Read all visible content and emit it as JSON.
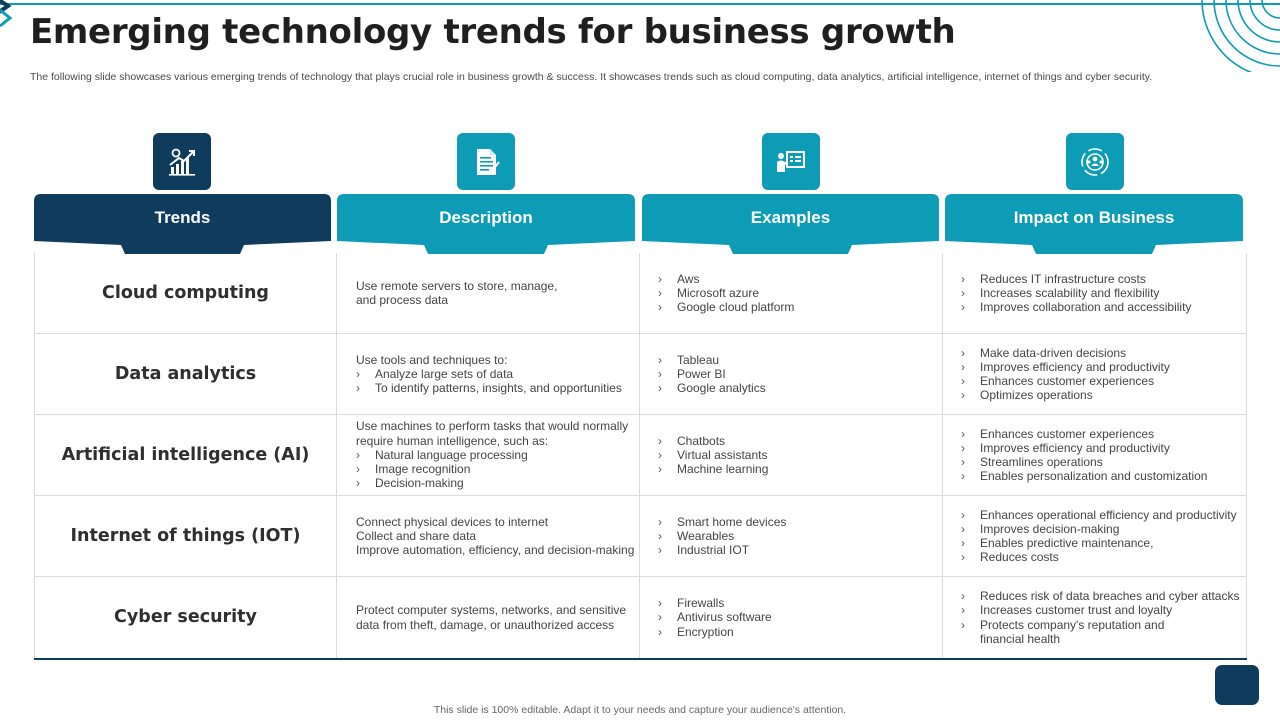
{
  "slide": {
    "title": "Emerging technology trends for business growth",
    "subtitle": "The following slide showcases various emerging trends of technology that plays crucial role in business growth & success. It showcases trends such as cloud computing, data analytics, artificial intelligence, internet of things and cyber security.",
    "footer": "This slide is 100% editable.  Adapt it to your needs and capture your audience's attention."
  },
  "colors": {
    "navy": "#0f3b5c",
    "teal": "#0e9bb5"
  },
  "columns": [
    {
      "label": "Trends",
      "icon": "growth-chart-icon",
      "color": "#0f3b5c"
    },
    {
      "label": "Description",
      "icon": "document-icon",
      "color": "#0e9bb5"
    },
    {
      "label": "Examples",
      "icon": "presentation-board-icon",
      "color": "#0e9bb5"
    },
    {
      "label": "Impact on Business",
      "icon": "target-people-icon",
      "color": "#0e9bb5"
    }
  ],
  "rows": [
    {
      "trend": "Cloud computing",
      "description": [
        {
          "text": "Use remote servers to store, manage,",
          "bullet": false
        },
        {
          "text": "and process data",
          "bullet": false
        }
      ],
      "examples": [
        "Aws",
        "Microsoft azure",
        "Google cloud platform"
      ],
      "impact": [
        "Reduces IT infrastructure costs",
        "Increases scalability and flexibility",
        "Improves collaboration and accessibility"
      ]
    },
    {
      "trend": "Data analytics",
      "description": [
        {
          "text": "Use tools and techniques to:",
          "bullet": false
        },
        {
          "text": "Analyze  large sets of data",
          "bullet": true
        },
        {
          "text": "To identify patterns, insights, and opportunities",
          "bullet": true
        }
      ],
      "examples": [
        "Tableau",
        "Power BI",
        "Google analytics"
      ],
      "impact": [
        "Make data-driven decisions",
        "Improves efficiency and productivity",
        "Enhances customer experiences",
        "Optimizes operations"
      ]
    },
    {
      "trend": "Artificial intelligence (AI)",
      "description": [
        {
          "text": "Use machines to perform tasks that would normally",
          "bullet": false
        },
        {
          "text": "require human intelligence, such as:",
          "bullet": false
        },
        {
          "text": "Natural language processing",
          "bullet": true
        },
        {
          "text": "Image recognition",
          "bullet": true
        },
        {
          "text": "Decision-making",
          "bullet": true
        }
      ],
      "examples": [
        "Chatbots",
        "Virtual assistants",
        "Machine learning"
      ],
      "impact": [
        "Enhances customer experiences",
        "Improves efficiency and productivity",
        "Streamlines operations",
        "Enables personalization and customization"
      ]
    },
    {
      "trend": "Internet of things (IOT)",
      "description": [
        {
          "text": "Connect physical devices to internet",
          "bullet": false
        },
        {
          "text": "Collect and share data",
          "bullet": false
        },
        {
          "text": "Improve automation, efficiency, and decision-making",
          "bullet": false
        }
      ],
      "examples": [
        "Smart home devices",
        "Wearables",
        "Industrial IOT"
      ],
      "impact": [
        "Enhances operational efficiency and productivity",
        "Improves decision-making",
        "Enables predictive maintenance,",
        "Reduces costs"
      ]
    },
    {
      "trend": "Cyber security",
      "description": [
        {
          "text": "Protect computer systems, networks, and sensitive",
          "bullet": false
        },
        {
          "text": "data from theft,  damage, or unauthorized access",
          "bullet": false
        }
      ],
      "examples": [
        "Firewalls",
        "Antivirus software",
        "Encryption"
      ],
      "impact": [
        "Reduces risk of data breaches and cyber attacks",
        "Increases customer trust and loyalty",
        "Protects company's reputation and",
        "financial health"
      ],
      "impact_continuation_index": 3
    }
  ]
}
